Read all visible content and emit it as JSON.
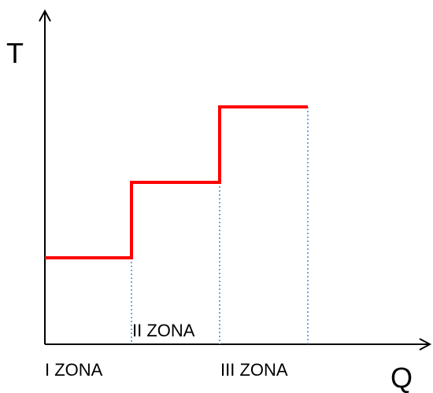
{
  "chart_data": {
    "type": "line",
    "title": "",
    "xlabel": "Q",
    "ylabel": "T",
    "grid": false,
    "legend": "none",
    "series": [
      {
        "style": "step",
        "color": "#ff0000",
        "levels": [
          1,
          2,
          3
        ]
      }
    ],
    "zones": [
      {
        "label": "I ZONA",
        "level": 1
      },
      {
        "label": "II ZONA",
        "level": 2
      },
      {
        "label": "III ZONA",
        "level": 3
      }
    ],
    "guide_color": "#4a86c8",
    "axis_color": "#000000"
  }
}
